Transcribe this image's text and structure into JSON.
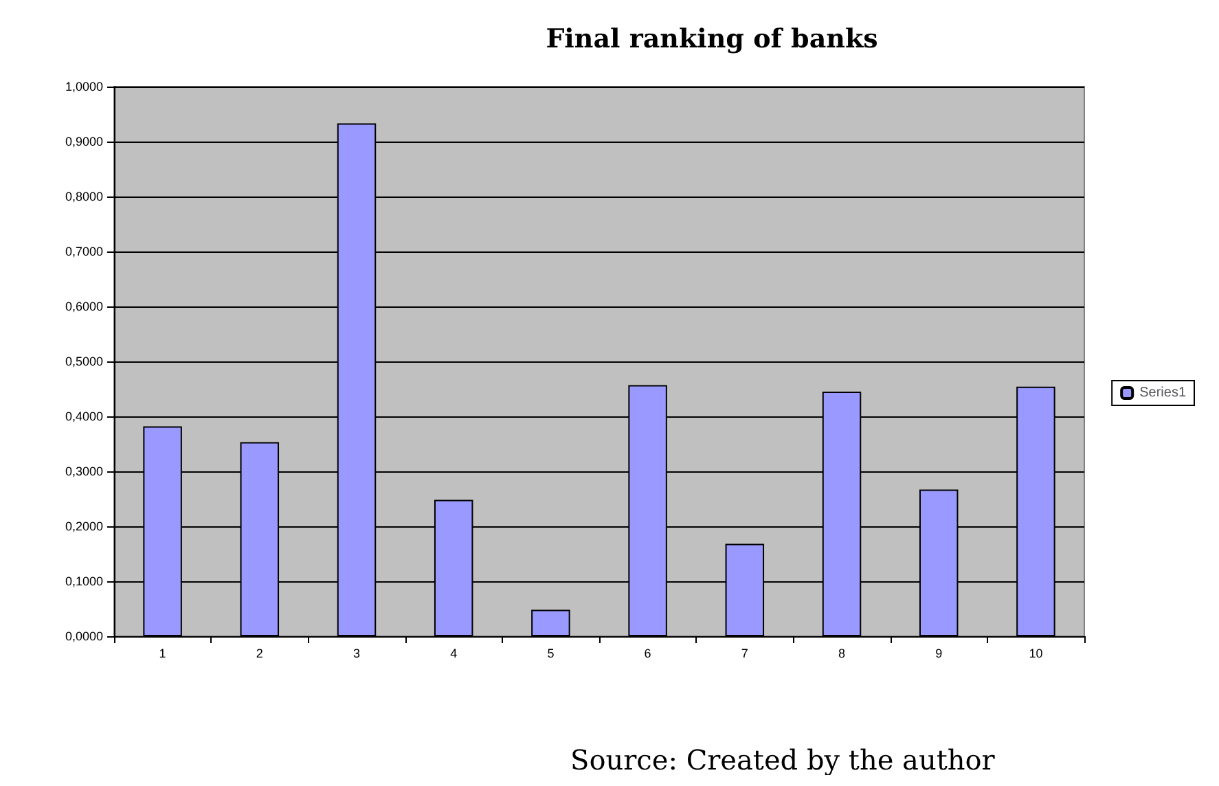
{
  "chart_data": {
    "type": "bar",
    "title": "Final ranking of banks",
    "categories": [
      "1",
      "2",
      "3",
      "4",
      "5",
      "6",
      "7",
      "8",
      "9",
      "10"
    ],
    "series": [
      {
        "name": "Series1",
        "color": "#9999ff",
        "values": [
          0.382,
          0.353,
          0.933,
          0.248,
          0.048,
          0.457,
          0.168,
          0.445,
          0.267,
          0.454
        ]
      }
    ],
    "ylim": [
      0,
      1
    ],
    "yticks": [
      {
        "value": 0,
        "label": "0,0000"
      },
      {
        "value": 0.1,
        "label": "0,1000"
      },
      {
        "value": 0.2,
        "label": "0,2000"
      },
      {
        "value": 0.3,
        "label": "0,3000"
      },
      {
        "value": 0.4,
        "label": "0,4000"
      },
      {
        "value": 0.5,
        "label": "0,5000"
      },
      {
        "value": 0.6,
        "label": "0,6000"
      },
      {
        "value": 0.7,
        "label": "0,7000"
      },
      {
        "value": 0.8,
        "label": "0,8000"
      },
      {
        "value": 0.9,
        "label": "0,9000"
      },
      {
        "value": 1,
        "label": "1,0000"
      }
    ],
    "grid": "y",
    "legend": "right",
    "annotations": [
      "Source: Created by the author"
    ]
  }
}
